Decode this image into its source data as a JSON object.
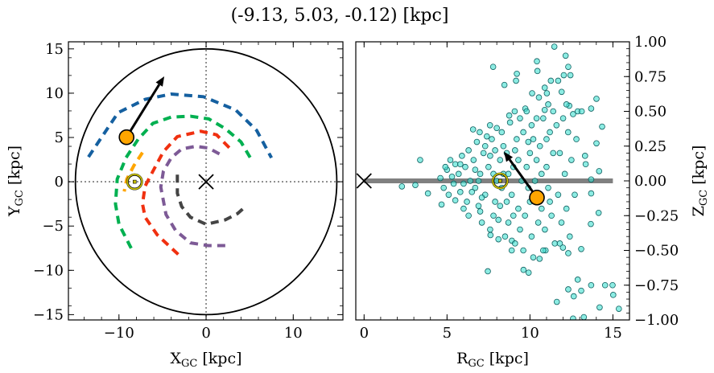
{
  "chart_data": [
    {
      "type": "line",
      "panel": "left",
      "title": "(-9.13, 5.03, -0.12) [kpc]",
      "xlabel": {
        "main": "X",
        "sub": "GC",
        "unit": " [kpc]"
      },
      "ylabel": {
        "main": "Y",
        "sub": "GC",
        "unit": " [kpc]"
      },
      "xlim": [
        -15.8,
        15.7
      ],
      "ylim": [
        -15.6,
        15.8
      ],
      "xticks": [
        -10,
        0,
        10
      ],
      "xtick_labels": [
        "−10",
        "0",
        "10"
      ],
      "yticks": [
        15,
        10,
        5,
        0,
        -5,
        -10,
        -15
      ],
      "ytick_labels": [
        "15",
        "10",
        "5",
        "0",
        "−5",
        "−10",
        "−15"
      ],
      "minor_step": 2,
      "boundary_circle_radius": 15,
      "galactic_center": [
        0,
        0
      ],
      "sun": [
        -8.2,
        0
      ],
      "star": [
        -9.13,
        5.03
      ],
      "velocity_arrow_tip": [
        -4.8,
        11.9
      ],
      "colors": {
        "star": "#ffa500",
        "sun": "#c8c000",
        "center": "#000000"
      },
      "arms": [
        {
          "color": "#1560a0",
          "points": [
            [
              -13.5,
              2.8
            ],
            [
              -10.1,
              7.8
            ],
            [
              -7,
              9.3
            ],
            [
              -4,
              9.9
            ],
            [
              -0.3,
              9.6
            ],
            [
              3.4,
              8.1
            ],
            [
              5.8,
              5.8
            ],
            [
              7.5,
              2.7
            ]
          ]
        },
        {
          "color": "#00b050",
          "points": [
            [
              -8.6,
              -7.5
            ],
            [
              -10,
              -4.8
            ],
            [
              -10.4,
              -2.5
            ],
            [
              -10.2,
              0.3
            ],
            [
              -9.2,
              2.7
            ],
            [
              -7.8,
              4.8
            ],
            [
              -6.1,
              6.6
            ],
            [
              -4,
              7.3
            ],
            [
              -1.8,
              7.4
            ],
            [
              0.3,
              7.1
            ],
            [
              2.2,
              6.0
            ],
            [
              4,
              4.5
            ],
            [
              5.2,
              2.5
            ]
          ]
        },
        {
          "color": "#f03010",
          "points": [
            [
              -3.2,
              -8.2
            ],
            [
              -5.6,
              -6
            ],
            [
              -7,
              -4
            ],
            [
              -7.3,
              -2.5
            ],
            [
              -7,
              -0.5
            ],
            [
              -6.1,
              1.2
            ],
            [
              -4.9,
              3.4
            ],
            [
              -3.3,
              5.1
            ],
            [
              -0.6,
              5.7
            ],
            [
              1.2,
              5.3
            ],
            [
              2.8,
              3.7
            ]
          ]
        },
        {
          "color": "#7d5a96",
          "points": [
            [
              2.2,
              -7.2
            ],
            [
              0.2,
              -7.2
            ],
            [
              -1.8,
              -6.9
            ],
            [
              -3.5,
              -5.5
            ],
            [
              -4.6,
              -3.7
            ],
            [
              -5.2,
              -0.6
            ],
            [
              -4.9,
              1.2
            ],
            [
              -4.0,
              2.7
            ],
            [
              -2.8,
              3.7
            ],
            [
              -1.2,
              4.0
            ],
            [
              0.3,
              3.8
            ],
            [
              1.6,
              3.1
            ]
          ]
        },
        {
          "color": "#444444",
          "points": [
            [
              -3.3,
              0.8
            ],
            [
              -3.3,
              -1.3
            ],
            [
              -2.8,
              -2.8
            ],
            [
              -1.8,
              -4.0
            ],
            [
              0,
              -4.8
            ],
            [
              2.2,
              -4.3
            ],
            [
              3.6,
              -3.6
            ],
            [
              4.4,
              -2.9
            ]
          ]
        },
        {
          "color": "#ffa500",
          "points": [
            [
              -7.3,
              3.3
            ],
            [
              -8.3,
              1.8
            ],
            [
              -9.1,
              0.3
            ],
            [
              -9.4,
              -1.1
            ]
          ]
        }
      ]
    },
    {
      "type": "scatter",
      "panel": "right",
      "xlabel": {
        "main": "R",
        "sub": "GC",
        "unit": " [kpc]"
      },
      "ylabel": {
        "main": "Z",
        "sub": "GC",
        "unit": " [kpc]"
      },
      "xlim": [
        -0.5,
        16
      ],
      "ylim": [
        -1,
        1
      ],
      "xticks": [
        0,
        5,
        10,
        15
      ],
      "xtick_labels": [
        "0",
        "5",
        "10",
        "15"
      ],
      "yticks": [
        1,
        0.75,
        0.5,
        0.25,
        0,
        -0.25,
        -0.5,
        -0.75,
        -1
      ],
      "ytick_labels": [
        "1.00",
        "0.75",
        "0.50",
        "0.25",
        "0.00",
        "−0.25",
        "−0.50",
        "−0.75",
        "−1.00"
      ],
      "ylabel_position": "right",
      "disk_line": {
        "x": [
          0,
          15
        ],
        "z": 0,
        "color": "#808080"
      },
      "galactic_center": [
        0,
        0
      ],
      "sun": [
        8.2,
        0
      ],
      "star": [
        10.42,
        -0.12
      ],
      "velocity_arrow_tip": [
        8.43,
        0.21
      ],
      "colors": {
        "points": "#40e0d0",
        "point_edge": "#106060",
        "star": "#ffa500"
      },
      "points": [
        [
          11.47,
          0.965
        ],
        [
          12.15,
          0.9
        ],
        [
          10.42,
          0.86
        ],
        [
          10.45,
          0.79
        ],
        [
          7.78,
          0.82
        ],
        [
          9.21,
          0.77
        ],
        [
          9.16,
          0.72
        ],
        [
          8.46,
          0.69
        ],
        [
          12.31,
          0.82
        ],
        [
          12.04,
          0.76
        ],
        [
          12.44,
          0.76
        ],
        [
          11.26,
          0.72
        ],
        [
          11.7,
          0.72
        ],
        [
          10.89,
          0.67
        ],
        [
          10.13,
          0.63
        ],
        [
          10.54,
          0.6
        ],
        [
          11.02,
          0.63
        ],
        [
          11.91,
          0.64
        ],
        [
          14.01,
          0.59
        ],
        [
          9.72,
          0.52
        ],
        [
          9.08,
          0.5
        ],
        [
          8.75,
          0.47
        ],
        [
          10.89,
          0.51
        ],
        [
          11.1,
          0.55
        ],
        [
          12.37,
          0.54
        ],
        [
          12.88,
          0.5
        ],
        [
          13.69,
          0.52
        ],
        [
          13.12,
          0.5
        ],
        [
          6.57,
          0.37
        ],
        [
          6.97,
          0.35
        ],
        [
          7.59,
          0.4
        ],
        [
          14.35,
          0.39
        ],
        [
          14.01,
          0.27
        ],
        [
          13.32,
          0.18
        ],
        [
          13.36,
          0.12
        ],
        [
          14.17,
          0.07
        ],
        [
          13.69,
          0.01
        ],
        [
          3.38,
          0.15
        ],
        [
          2.28,
          -0.04
        ],
        [
          3.09,
          -0.03
        ],
        [
          3.85,
          -0.09
        ],
        [
          4.67,
          -0.17
        ],
        [
          7.46,
          -0.65
        ],
        [
          9.61,
          -0.64
        ],
        [
          9.92,
          -0.66
        ],
        [
          11.99,
          -0.48
        ],
        [
          12.31,
          -0.52
        ],
        [
          13.09,
          -0.49
        ],
        [
          12.88,
          -0.71
        ],
        [
          13.69,
          -0.75
        ],
        [
          14.53,
          -0.75
        ],
        [
          14.98,
          -0.75
        ],
        [
          12.31,
          -0.78
        ],
        [
          13.09,
          -0.79
        ],
        [
          12.64,
          -0.83
        ],
        [
          15.02,
          -0.82
        ],
        [
          11.62,
          -0.87
        ],
        [
          14.2,
          -0.91
        ],
        [
          15.36,
          -0.92
        ],
        [
          12.6,
          -0.99
        ],
        [
          13.25,
          -0.98
        ],
        [
          10.58,
          -0.56
        ],
        [
          10.94,
          -0.5
        ],
        [
          8.91,
          -0.43
        ],
        [
          7.62,
          -0.39
        ],
        [
          13.67,
          -0.31
        ],
        [
          14.14,
          -0.23
        ],
        [
          13.69,
          -0.09
        ],
        [
          4.6,
          0.02
        ],
        [
          4.8,
          -0.05
        ],
        [
          5.0,
          0.08
        ],
        [
          5.1,
          -0.1
        ],
        [
          5.3,
          0.03
        ],
        [
          5.4,
          -0.02
        ],
        [
          5.5,
          0.12
        ],
        [
          5.2,
          0.15
        ],
        [
          4.9,
          0.1
        ],
        [
          5.5,
          -0.14
        ],
        [
          5.7,
          0.05
        ],
        [
          5.8,
          -0.08
        ],
        [
          5.9,
          0.18
        ],
        [
          6.0,
          -0.02
        ],
        [
          6.1,
          0.1
        ],
        [
          6.2,
          -0.15
        ],
        [
          6.3,
          0.22
        ],
        [
          6.4,
          0.0
        ],
        [
          6.0,
          -0.2
        ],
        [
          6.5,
          -0.08
        ],
        [
          5.8,
          0.12
        ],
        [
          6.3,
          -0.25
        ],
        [
          6.6,
          0.15
        ],
        [
          6.7,
          -0.05
        ],
        [
          6.8,
          0.28
        ],
        [
          6.9,
          -0.18
        ],
        [
          7.0,
          0.05
        ],
        [
          7.1,
          -0.3
        ],
        [
          7.2,
          0.2
        ],
        [
          7.3,
          -0.1
        ],
        [
          7.4,
          0.32
        ],
        [
          6.9,
          0.0
        ],
        [
          7.0,
          -0.22
        ],
        [
          7.5,
          0.1
        ],
        [
          6.7,
          0.08
        ],
        [
          7.3,
          0.25
        ],
        [
          7.1,
          -0.12
        ],
        [
          7.6,
          -0.35
        ],
        [
          7.7,
          0.3
        ],
        [
          7.8,
          0.05
        ],
        [
          7.9,
          -0.15
        ],
        [
          8.0,
          0.38
        ],
        [
          8.1,
          -0.28
        ],
        [
          8.2,
          0.15
        ],
        [
          8.3,
          -0.05
        ],
        [
          8.4,
          0.25
        ],
        [
          8.5,
          -0.4
        ],
        [
          7.6,
          0.18
        ],
        [
          7.8,
          -0.25
        ],
        [
          8.0,
          0.0
        ],
        [
          8.2,
          -0.18
        ],
        [
          8.4,
          0.05
        ],
        [
          7.9,
          0.22
        ],
        [
          8.3,
          0.35
        ],
        [
          8.1,
          -0.42
        ],
        [
          8.6,
          0.2
        ],
        [
          8.7,
          -0.3
        ],
        [
          8.8,
          0.42
        ],
        [
          8.9,
          -0.1
        ],
        [
          9.0,
          0.1
        ],
        [
          9.1,
          -0.45
        ],
        [
          9.2,
          0.3
        ],
        [
          9.3,
          -0.2
        ],
        [
          9.4,
          0.45
        ],
        [
          9.5,
          0.0
        ],
        [
          8.7,
          0.05
        ],
        [
          8.9,
          -0.5
        ],
        [
          9.1,
          0.22
        ],
        [
          9.3,
          0.15
        ],
        [
          8.6,
          -0.15
        ],
        [
          9.4,
          -0.35
        ],
        [
          9.0,
          -0.25
        ],
        [
          9.6,
          0.35
        ],
        [
          9.7,
          -0.25
        ],
        [
          9.8,
          0.5
        ],
        [
          9.9,
          -0.05
        ],
        [
          10.0,
          0.2
        ],
        [
          10.1,
          -0.4
        ],
        [
          10.2,
          0.3
        ],
        [
          10.3,
          0.0
        ],
        [
          10.4,
          0.45
        ],
        [
          10.5,
          -0.3
        ],
        [
          9.6,
          -0.5
        ],
        [
          9.8,
          0.1
        ],
        [
          10.0,
          -0.15
        ],
        [
          10.2,
          -0.55
        ],
        [
          10.4,
          0.15
        ],
        [
          9.9,
          0.28
        ],
        [
          10.1,
          0.4
        ],
        [
          10.6,
          0.25
        ],
        [
          10.7,
          -0.2
        ],
        [
          10.8,
          0.45
        ],
        [
          10.9,
          -0.35
        ],
        [
          11.0,
          0.1
        ],
        [
          11.1,
          -0.05
        ],
        [
          11.2,
          0.35
        ],
        [
          11.3,
          -0.25
        ],
        [
          11.4,
          0.5
        ],
        [
          11.5,
          -0.45
        ],
        [
          10.7,
          0.05
        ],
        [
          11.0,
          0.3
        ],
        [
          11.2,
          -0.15
        ],
        [
          10.8,
          -0.5
        ],
        [
          11.4,
          0.2
        ],
        [
          11.6,
          0.4
        ],
        [
          11.7,
          -0.1
        ],
        [
          11.8,
          0.2
        ],
        [
          11.9,
          -0.3
        ],
        [
          12.0,
          0.45
        ],
        [
          12.1,
          0.05
        ],
        [
          12.2,
          -0.2
        ],
        [
          12.3,
          0.35
        ],
        [
          12.4,
          -0.4
        ],
        [
          12.5,
          0.15
        ],
        [
          12.6,
          0.48
        ],
        [
          12.7,
          -0.1
        ],
        [
          11.8,
          -0.45
        ],
        [
          12.2,
          0.55
        ],
        [
          12.8,
          0.3
        ]
      ]
    }
  ]
}
